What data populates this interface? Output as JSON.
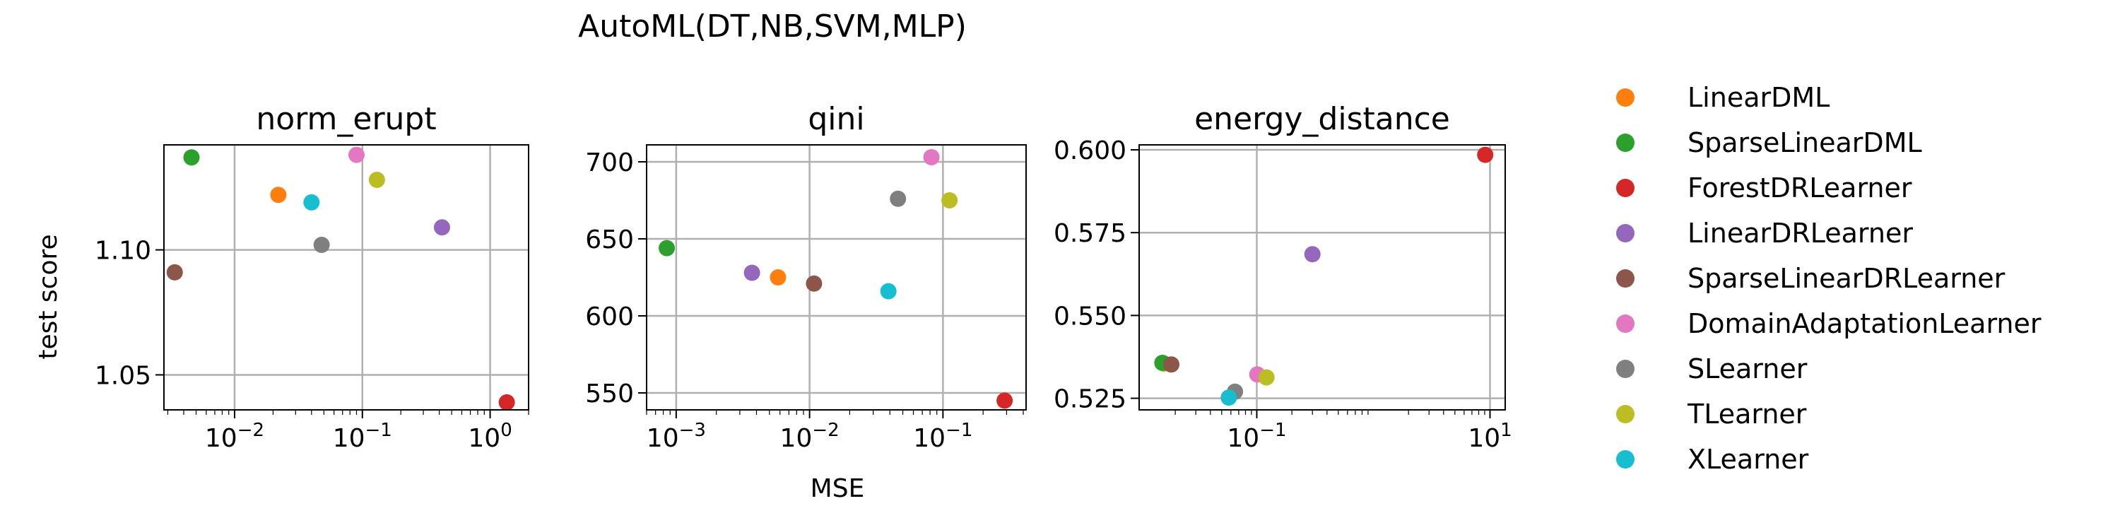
{
  "chart_data": {
    "title": "AutoML(DT,NB,SVM,MLP)",
    "type": "scatter",
    "ylabel": "test score",
    "xlabel": "MSE",
    "legend": {
      "placement": "right",
      "entries": [
        {
          "name": "LinearDML",
          "color": "#ff7f0e"
        },
        {
          "name": "SparseLinearDML",
          "color": "#2ca02c"
        },
        {
          "name": "ForestDRLearner",
          "color": "#d62728"
        },
        {
          "name": "LinearDRLearner",
          "color": "#9467bd"
        },
        {
          "name": "SparseLinearDRLearner",
          "color": "#8c564b"
        },
        {
          "name": "DomainAdaptationLearner",
          "color": "#e377c2"
        },
        {
          "name": "SLearner",
          "color": "#7f7f7f"
        },
        {
          "name": "TLearner",
          "color": "#bcbd22"
        },
        {
          "name": "XLearner",
          "color": "#17becf"
        }
      ]
    },
    "panels": [
      {
        "id": "norm-erupt",
        "title": "norm_erupt",
        "xscale": "log",
        "xlim": [
          0.0028,
          2.0
        ],
        "ylim": [
          1.036,
          1.142
        ],
        "grid": true,
        "xticks": [
          {
            "value": 0.01,
            "base": "10",
            "exp": "−2"
          },
          {
            "value": 0.1,
            "base": "10",
            "exp": "−1"
          },
          {
            "value": 1,
            "base": "10",
            "exp": "0"
          }
        ],
        "yticks": [
          {
            "value": 1.05,
            "label": "1.05"
          },
          {
            "value": 1.1,
            "label": "1.10"
          }
        ],
        "points": [
          {
            "series": "LinearDML",
            "x": 0.022,
            "y": 1.122
          },
          {
            "series": "SparseLinearDML",
            "x": 0.0046,
            "y": 1.137
          },
          {
            "series": "ForestDRLearner",
            "x": 1.35,
            "y": 1.039
          },
          {
            "series": "LinearDRLearner",
            "x": 0.42,
            "y": 1.109
          },
          {
            "series": "SparseLinearDRLearner",
            "x": 0.0034,
            "y": 1.091
          },
          {
            "series": "DomainAdaptationLearner",
            "x": 0.09,
            "y": 1.138
          },
          {
            "series": "SLearner",
            "x": 0.048,
            "y": 1.102
          },
          {
            "series": "TLearner",
            "x": 0.13,
            "y": 1.128
          },
          {
            "series": "XLearner",
            "x": 0.04,
            "y": 1.119
          }
        ]
      },
      {
        "id": "qini",
        "title": "qini",
        "xscale": "log",
        "xlim": [
          0.0006,
          0.42
        ],
        "ylim": [
          539,
          711
        ],
        "grid": true,
        "xticks": [
          {
            "value": 0.001,
            "base": "10",
            "exp": "−3"
          },
          {
            "value": 0.01,
            "base": "10",
            "exp": "−2"
          },
          {
            "value": 0.1,
            "base": "10",
            "exp": "−1"
          }
        ],
        "yticks": [
          {
            "value": 550,
            "label": "550"
          },
          {
            "value": 600,
            "label": "600"
          },
          {
            "value": 650,
            "label": "650"
          },
          {
            "value": 700,
            "label": "700"
          }
        ],
        "points": [
          {
            "series": "LinearDML",
            "x": 0.0058,
            "y": 625
          },
          {
            "series": "SparseLinearDML",
            "x": 0.00085,
            "y": 644
          },
          {
            "series": "ForestDRLearner",
            "x": 0.29,
            "y": 545
          },
          {
            "series": "LinearDRLearner",
            "x": 0.0037,
            "y": 628
          },
          {
            "series": "SparseLinearDRLearner",
            "x": 0.0108,
            "y": 621
          },
          {
            "series": "DomainAdaptationLearner",
            "x": 0.082,
            "y": 703
          },
          {
            "series": "SLearner",
            "x": 0.046,
            "y": 676
          },
          {
            "series": "TLearner",
            "x": 0.112,
            "y": 675
          },
          {
            "series": "XLearner",
            "x": 0.039,
            "y": 616
          }
        ]
      },
      {
        "id": "energy-distance",
        "title": "energy_distance",
        "xscale": "log",
        "xlim": [
          0.0098,
          13.5
        ],
        "ylim": [
          0.5215,
          0.6015
        ],
        "grid": true,
        "xticks": [
          {
            "value": 0.1,
            "base": "10",
            "exp": "−1"
          },
          {
            "value": 10,
            "base": "10",
            "exp": "1"
          }
        ],
        "yticks": [
          {
            "value": 0.525,
            "label": "0.525"
          },
          {
            "value": 0.55,
            "label": "0.550"
          },
          {
            "value": 0.575,
            "label": "0.575"
          },
          {
            "value": 0.6,
            "label": "0.600"
          }
        ],
        "points": [
          {
            "series": "LinearDML",
            "x": 0.016,
            "y": 0.5355
          },
          {
            "series": "SparseLinearDML",
            "x": 0.0155,
            "y": 0.5357
          },
          {
            "series": "ForestDRLearner",
            "x": 9.1,
            "y": 0.5985
          },
          {
            "series": "LinearDRLearner",
            "x": 0.3,
            "y": 0.5685
          },
          {
            "series": "SparseLinearDRLearner",
            "x": 0.0185,
            "y": 0.5352
          },
          {
            "series": "DomainAdaptationLearner",
            "x": 0.101,
            "y": 0.5322
          },
          {
            "series": "SLearner",
            "x": 0.065,
            "y": 0.527
          },
          {
            "series": "TLearner",
            "x": 0.121,
            "y": 0.5313
          },
          {
            "series": "XLearner",
            "x": 0.0575,
            "y": 0.5252
          }
        ]
      }
    ]
  }
}
